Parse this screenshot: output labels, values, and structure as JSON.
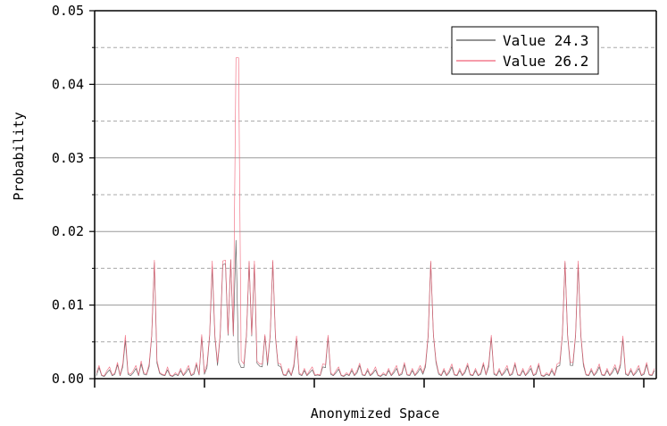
{
  "chart_data": {
    "type": "line",
    "title": "",
    "xlabel": "Anonymized Space",
    "ylabel": "Probability",
    "ylim": [
      0,
      0.05
    ],
    "yticks": [
      "0.00",
      "0.01",
      "0.02",
      "0.03",
      "0.04",
      "0.05"
    ],
    "x_tick_labels": [],
    "grid": {
      "major": true,
      "minor_dashed": true
    },
    "legend_position": "top-right",
    "series": [
      {
        "name": "Value 24.3",
        "color": "#555555",
        "values": [
          0.0004,
          0.0015,
          0.0004,
          0.0003,
          0.0008,
          0.0012,
          0.0004,
          0.0006,
          0.0019,
          0.0004,
          0.0016,
          0.0052,
          0.0006,
          0.0004,
          0.0008,
          0.0014,
          0.0004,
          0.002,
          0.0006,
          0.0005,
          0.0016,
          0.0058,
          0.0158,
          0.0021,
          0.0007,
          0.0005,
          0.0004,
          0.0012,
          0.0004,
          0.0003,
          0.0006,
          0.0004,
          0.0011,
          0.0004,
          0.0008,
          0.0014,
          0.0004,
          0.0006,
          0.0019,
          0.0005,
          0.0057,
          0.0006,
          0.0015,
          0.0058,
          0.0152,
          0.0056,
          0.0018,
          0.0058,
          0.0155,
          0.0156,
          0.0059,
          0.0161,
          0.0058,
          0.0188,
          0.0023,
          0.0015,
          0.0015,
          0.0058,
          0.0158,
          0.0058,
          0.0155,
          0.0021,
          0.0017,
          0.0016,
          0.0058,
          0.0018,
          0.0058,
          0.0159,
          0.0056,
          0.0018,
          0.0016,
          0.0005,
          0.0004,
          0.0011,
          0.0004,
          0.0016,
          0.0054,
          0.0006,
          0.0004,
          0.0011,
          0.0004,
          0.0008,
          0.0012,
          0.0004,
          0.0005,
          0.0004,
          0.0016,
          0.0015,
          0.0056,
          0.0006,
          0.0004,
          0.0008,
          0.0013,
          0.0004,
          0.0003,
          0.0006,
          0.0004,
          0.0011,
          0.0004,
          0.0008,
          0.0018,
          0.0005,
          0.0004,
          0.0011,
          0.0004,
          0.0007,
          0.0012,
          0.0004,
          0.0003,
          0.0006,
          0.0004,
          0.0011,
          0.0004,
          0.0008,
          0.0014,
          0.0004,
          0.0006,
          0.0019,
          0.0005,
          0.0004,
          0.0011,
          0.0004,
          0.0008,
          0.0014,
          0.0006,
          0.0016,
          0.0057,
          0.0158,
          0.0059,
          0.0022,
          0.0006,
          0.0004,
          0.0011,
          0.0004,
          0.0008,
          0.0016,
          0.0005,
          0.0004,
          0.0011,
          0.0004,
          0.0008,
          0.0018,
          0.0005,
          0.0004,
          0.0011,
          0.0004,
          0.0006,
          0.0019,
          0.0005,
          0.0016,
          0.0056,
          0.0006,
          0.0004,
          0.0011,
          0.0004,
          0.0008,
          0.0014,
          0.0004,
          0.0006,
          0.0019,
          0.0005,
          0.0004,
          0.0011,
          0.0004,
          0.0008,
          0.0014,
          0.0004,
          0.0006,
          0.0018,
          0.0004,
          0.0003,
          0.0006,
          0.0004,
          0.0011,
          0.0004,
          0.0016,
          0.0018,
          0.0058,
          0.0158,
          0.0058,
          0.0018,
          0.0018,
          0.0058,
          0.0155,
          0.0058,
          0.0018,
          0.0005,
          0.0004,
          0.0011,
          0.0004,
          0.0008,
          0.0016,
          0.0005,
          0.0004,
          0.0011,
          0.0004,
          0.0008,
          0.0015,
          0.0006,
          0.0016,
          0.0054,
          0.0006,
          0.0004,
          0.0011,
          0.0004,
          0.0008,
          0.0014,
          0.0004,
          0.0006,
          0.0019,
          0.0005,
          0.0004,
          0.0011
        ],
        "peaks": [
          0.0158,
          0.0152,
          0.0155,
          0.0156,
          0.0161,
          0.0188,
          0.0158,
          0.0155,
          0.0159,
          0.0158,
          0.0158,
          0.0155
        ]
      },
      {
        "name": "Value 26.2",
        "color": "#f06277",
        "values": [
          0.0008,
          0.0018,
          0.0005,
          0.0004,
          0.0011,
          0.0016,
          0.0005,
          0.0008,
          0.0022,
          0.0005,
          0.002,
          0.0059,
          0.0008,
          0.0006,
          0.0011,
          0.0018,
          0.0005,
          0.0024,
          0.0008,
          0.0006,
          0.002,
          0.0059,
          0.0161,
          0.0025,
          0.0009,
          0.0006,
          0.0005,
          0.0016,
          0.0005,
          0.0004,
          0.0008,
          0.0005,
          0.0014,
          0.0005,
          0.0011,
          0.0018,
          0.0005,
          0.0008,
          0.0022,
          0.0006,
          0.006,
          0.0008,
          0.002,
          0.006,
          0.016,
          0.0059,
          0.0022,
          0.006,
          0.016,
          0.0161,
          0.0061,
          0.0162,
          0.006,
          0.0436,
          0.0436,
          0.0025,
          0.002,
          0.006,
          0.016,
          0.006,
          0.016,
          0.0024,
          0.002,
          0.002,
          0.006,
          0.0022,
          0.006,
          0.0161,
          0.0058,
          0.0021,
          0.002,
          0.0006,
          0.0005,
          0.0014,
          0.0005,
          0.002,
          0.0058,
          0.0008,
          0.0005,
          0.0014,
          0.0005,
          0.0011,
          0.0016,
          0.0005,
          0.0006,
          0.0005,
          0.002,
          0.0019,
          0.0059,
          0.0008,
          0.0005,
          0.0011,
          0.0016,
          0.0005,
          0.0004,
          0.0008,
          0.0005,
          0.0014,
          0.0005,
          0.0011,
          0.0021,
          0.0006,
          0.0005,
          0.0014,
          0.0005,
          0.0009,
          0.0016,
          0.0005,
          0.0004,
          0.0008,
          0.0005,
          0.0014,
          0.0005,
          0.0011,
          0.0018,
          0.0005,
          0.0008,
          0.0022,
          0.0006,
          0.0005,
          0.0014,
          0.0005,
          0.0011,
          0.0018,
          0.0008,
          0.002,
          0.0059,
          0.016,
          0.006,
          0.0025,
          0.0008,
          0.0005,
          0.0014,
          0.0005,
          0.0011,
          0.002,
          0.0006,
          0.0005,
          0.0014,
          0.0005,
          0.0011,
          0.0021,
          0.0006,
          0.0005,
          0.0014,
          0.0005,
          0.0008,
          0.0022,
          0.0006,
          0.002,
          0.0059,
          0.0008,
          0.0005,
          0.0014,
          0.0005,
          0.0011,
          0.0018,
          0.0005,
          0.0008,
          0.0022,
          0.0006,
          0.0005,
          0.0014,
          0.0005,
          0.0011,
          0.0018,
          0.0005,
          0.0008,
          0.0021,
          0.0005,
          0.0004,
          0.0008,
          0.0005,
          0.0014,
          0.0005,
          0.002,
          0.0022,
          0.006,
          0.016,
          0.006,
          0.0022,
          0.0022,
          0.006,
          0.016,
          0.006,
          0.0022,
          0.0006,
          0.0005,
          0.0014,
          0.0005,
          0.0011,
          0.002,
          0.0006,
          0.0005,
          0.0014,
          0.0005,
          0.0011,
          0.0019,
          0.0008,
          0.002,
          0.0058,
          0.0008,
          0.0005,
          0.0014,
          0.0005,
          0.0011,
          0.0018,
          0.0005,
          0.0008,
          0.0022,
          0.0006,
          0.0005,
          0.0014
        ],
        "peaks": [
          0.0161,
          0.016,
          0.016,
          0.0161,
          0.0162,
          0.0436,
          0.0436,
          0.016,
          0.016,
          0.0161,
          0.016,
          0.016,
          0.016
        ]
      }
    ]
  }
}
